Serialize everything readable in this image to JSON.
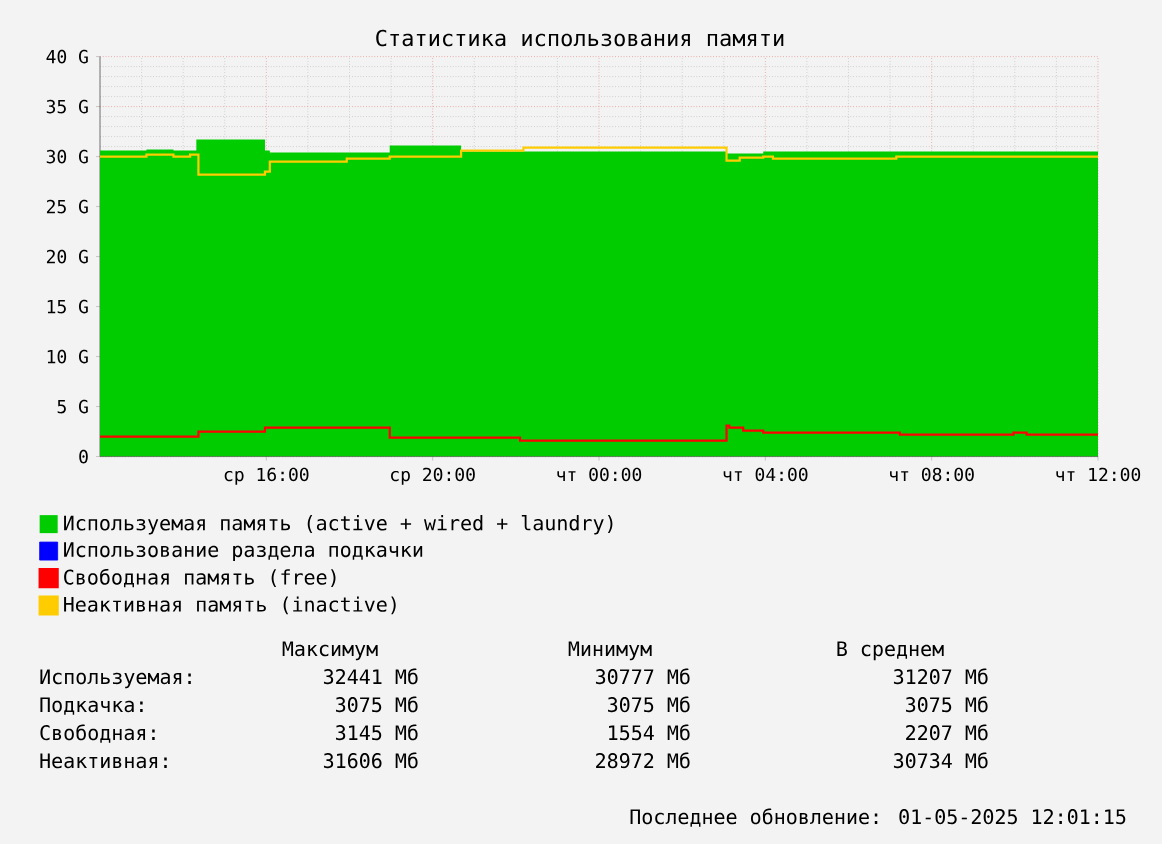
{
  "chart_data": {
    "type": "area",
    "title": "Статистика использования памяти",
    "xlim": [
      "2025-04-30T12:00",
      "2025-05-01T12:00"
    ],
    "ylim": [
      0,
      40
    ],
    "xticks": [
      {
        "value": "2025-04-30T13:00",
        "label": null
      },
      {
        "value": "2025-04-30T14:00",
        "label": null
      },
      {
        "value": "2025-04-30T15:00",
        "label": null
      },
      {
        "value": "2025-04-30T16:00",
        "label": "ср 16:00"
      },
      {
        "value": "2025-04-30T17:00",
        "label": null
      },
      {
        "value": "2025-04-30T18:00",
        "label": null
      },
      {
        "value": "2025-04-30T19:00",
        "label": null
      },
      {
        "value": "2025-04-30T20:00",
        "label": "ср 20:00"
      },
      {
        "value": "2025-04-30T21:00",
        "label": null
      },
      {
        "value": "2025-04-30T22:00",
        "label": null
      },
      {
        "value": "2025-04-30T23:00",
        "label": null
      },
      {
        "value": "2025-05-01T00:00",
        "label": "чт 00:00"
      },
      {
        "value": "2025-05-01T01:00",
        "label": null
      },
      {
        "value": "2025-05-01T02:00",
        "label": null
      },
      {
        "value": "2025-05-01T03:00",
        "label": null
      },
      {
        "value": "2025-05-01T04:00",
        "label": "чт 04:00"
      },
      {
        "value": "2025-05-01T05:00",
        "label": null
      },
      {
        "value": "2025-05-01T06:00",
        "label": null
      },
      {
        "value": "2025-05-01T07:00",
        "label": null
      },
      {
        "value": "2025-05-01T08:00",
        "label": "чт 08:00"
      },
      {
        "value": "2025-05-01T09:00",
        "label": null
      },
      {
        "value": "2025-05-01T10:00",
        "label": null
      },
      {
        "value": "2025-05-01T11:00",
        "label": null
      },
      {
        "value": "2025-05-01T12:00",
        "label": "чт 12:00"
      }
    ],
    "yticks": [
      0,
      {
        "value": 1,
        "label": null
      },
      {
        "value": 2,
        "label": null
      },
      {
        "value": 3,
        "label": null
      },
      {
        "value": 4,
        "label": null
      },
      {
        "value": 5,
        "label": "5 G"
      },
      {
        "value": 6,
        "label": null
      },
      {
        "value": 7,
        "label": null
      },
      {
        "value": 8,
        "label": null
      },
      {
        "value": 9,
        "label": null
      },
      {
        "value": 10,
        "label": "10 G"
      },
      {
        "value": 11,
        "label": null
      },
      {
        "value": 12,
        "label": null
      },
      {
        "value": 13,
        "label": null
      },
      {
        "value": 14,
        "label": null
      },
      {
        "value": 15,
        "label": "15 G"
      },
      {
        "value": 16,
        "label": null
      },
      {
        "value": 17,
        "label": null
      },
      {
        "value": 18,
        "label": null
      },
      {
        "value": 19,
        "label": null
      },
      {
        "value": 20,
        "label": "20 G"
      },
      {
        "value": 21,
        "label": null
      },
      {
        "value": 22,
        "label": null
      },
      {
        "value": 23,
        "label": null
      },
      {
        "value": 24,
        "label": null
      },
      {
        "value": 25,
        "label": "25 G"
      },
      {
        "value": 26,
        "label": null
      },
      {
        "value": 27,
        "label": null
      },
      {
        "value": 28,
        "label": null
      },
      {
        "value": 29,
        "label": null
      },
      {
        "value": 30,
        "label": "30 G"
      },
      {
        "value": 31,
        "label": null
      },
      {
        "value": 32,
        "label": null
      },
      {
        "value": 33,
        "label": null
      },
      {
        "value": 34,
        "label": null
      },
      {
        "value": 35,
        "label": "35 G"
      },
      {
        "value": 36,
        "label": null
      },
      {
        "value": 37,
        "label": null
      },
      {
        "value": 38,
        "label": null
      },
      {
        "value": 39,
        "label": null
      },
      {
        "value": 40,
        "label": "40 G"
      }
    ],
    "grid": true,
    "legend": "bottom",
    "series": [
      {
        "name": "Используемая память (active + wired + laundry)",
        "color": "#00cc00",
        "x": [
          "2025-04-30T12:00",
          "2025-04-30T13:07",
          "2025-04-30T13:46",
          "2025-04-30T14:19",
          "2025-04-30T15:58",
          "2025-04-30T16:05",
          "2025-04-30T18:58",
          "2025-04-30T20:41",
          "2025-05-01T03:04",
          "2025-05-01T03:57",
          "2025-05-01T12:00"
        ],
        "values": [
          30.6,
          30.7,
          30.6,
          31.7,
          30.6,
          30.4,
          31.1,
          30.5,
          30.3,
          30.5,
          30.5
        ]
      },
      {
        "name": "Использование раздела подкачки",
        "color": "#0000ff",
        "values": [
          null
        ]
      },
      {
        "name": "Свободная память (free)",
        "color": "#ff0000",
        "type": "step",
        "x": [
          "2025-04-30T12:00",
          "2025-04-30T14:22",
          "2025-04-30T15:58",
          "2025-04-30T18:58",
          "2025-04-30T22:06",
          "2025-05-01T03:04",
          "2025-05-01T03:08",
          "2025-05-01T03:28",
          "2025-05-01T03:57",
          "2025-05-01T07:14",
          "2025-05-01T09:58",
          "2025-05-01T10:17",
          "2025-05-01T12:00"
        ],
        "values": [
          2.0,
          2.5,
          2.9,
          1.9,
          1.6,
          3.1,
          2.9,
          2.6,
          2.4,
          2.2,
          2.4,
          2.2,
          2.2
        ]
      },
      {
        "name": "Неактивная память (inactive)",
        "color": "#ffcc00",
        "type": "step",
        "x": [
          "2025-04-30T12:00",
          "2025-04-30T13:07",
          "2025-04-30T13:46",
          "2025-04-30T14:10",
          "2025-04-30T14:22",
          "2025-04-30T15:58",
          "2025-04-30T16:05",
          "2025-04-30T17:56",
          "2025-04-30T18:58",
          "2025-04-30T20:41",
          "2025-04-30T22:11",
          "2025-05-01T03:04",
          "2025-05-01T03:23",
          "2025-05-01T03:57",
          "2025-05-01T04:11",
          "2025-05-01T07:09",
          "2025-05-01T12:00"
        ],
        "values": [
          30.0,
          30.2,
          30.0,
          30.2,
          28.2,
          28.5,
          29.5,
          29.8,
          30.0,
          30.6,
          30.9,
          29.6,
          29.9,
          30.0,
          29.8,
          30.0,
          30.0
        ]
      }
    ],
    "annotations": [
      "Максимум",
      "Минимум",
      "В среднем",
      "Используемая:",
      "32441 Мб",
      "30777 Мб",
      "31207 Мб",
      "Подкачка:",
      "3075 Мб",
      "3075 Мб",
      "3075 Мб",
      "Свободная:",
      "3145 Мб",
      "1554 Мб",
      "2207 Мб",
      "Неактивная:",
      "31606 Мб",
      "28972 Мб",
      "30734 Мб",
      "Последнее обновление: 01-05-2025 12:01:15"
    ]
  }
}
